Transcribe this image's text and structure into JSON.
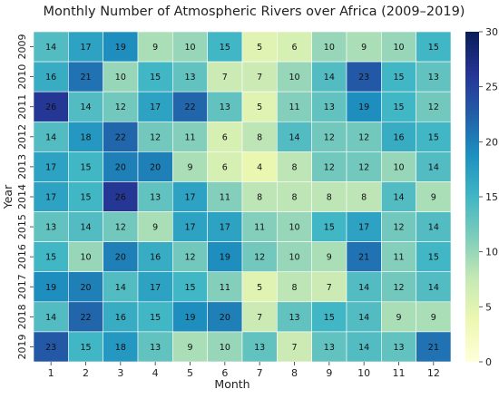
{
  "chart_data": {
    "type": "heatmap",
    "title": "Monthly Number of Atmospheric Rivers over Africa (2009–2019)",
    "xlabel": "Month",
    "ylabel": "Year",
    "x_categories": [
      "1",
      "2",
      "3",
      "4",
      "5",
      "6",
      "7",
      "8",
      "9",
      "10",
      "11",
      "12"
    ],
    "y_categories": [
      "2009",
      "2010",
      "2011",
      "2012",
      "2013",
      "2014",
      "2015",
      "2016",
      "2017",
      "2018",
      "2019"
    ],
    "values": [
      [
        14,
        17,
        19,
        9,
        10,
        15,
        5,
        6,
        10,
        9,
        10,
        15
      ],
      [
        16,
        21,
        10,
        15,
        13,
        7,
        7,
        10,
        14,
        23,
        15,
        13
      ],
      [
        26,
        14,
        12,
        17,
        22,
        13,
        5,
        11,
        13,
        19,
        15,
        12
      ],
      [
        14,
        18,
        22,
        12,
        11,
        6,
        8,
        14,
        12,
        12,
        16,
        15
      ],
      [
        17,
        15,
        20,
        20,
        9,
        6,
        4,
        8,
        12,
        12,
        10,
        14
      ],
      [
        17,
        15,
        26,
        13,
        17,
        11,
        8,
        8,
        8,
        8,
        14,
        9
      ],
      [
        13,
        14,
        12,
        9,
        17,
        17,
        11,
        10,
        15,
        17,
        12,
        14
      ],
      [
        15,
        10,
        20,
        16,
        12,
        19,
        12,
        10,
        9,
        21,
        11,
        15
      ],
      [
        19,
        20,
        14,
        17,
        15,
        11,
        5,
        8,
        7,
        14,
        12,
        14
      ],
      [
        14,
        22,
        16,
        15,
        19,
        20,
        7,
        13,
        15,
        14,
        9,
        9
      ],
      [
        23,
        15,
        18,
        13,
        9,
        10,
        13,
        7,
        13,
        14,
        13,
        21
      ]
    ],
    "colormap": "YlGnBu",
    "colorbar": {
      "vmin": 0,
      "vmax": 30,
      "ticks": [
        "0",
        "5",
        "10",
        "15",
        "20",
        "25",
        "30"
      ]
    },
    "colors": {
      "stops": [
        "#ffffd9",
        "#edf8b1",
        "#c7e9b4",
        "#7fcdbb",
        "#41b6c4",
        "#1d91c0",
        "#225ea8",
        "#253494",
        "#081d58"
      ],
      "cell_border": "#ffffff",
      "text": "#111111"
    }
  }
}
